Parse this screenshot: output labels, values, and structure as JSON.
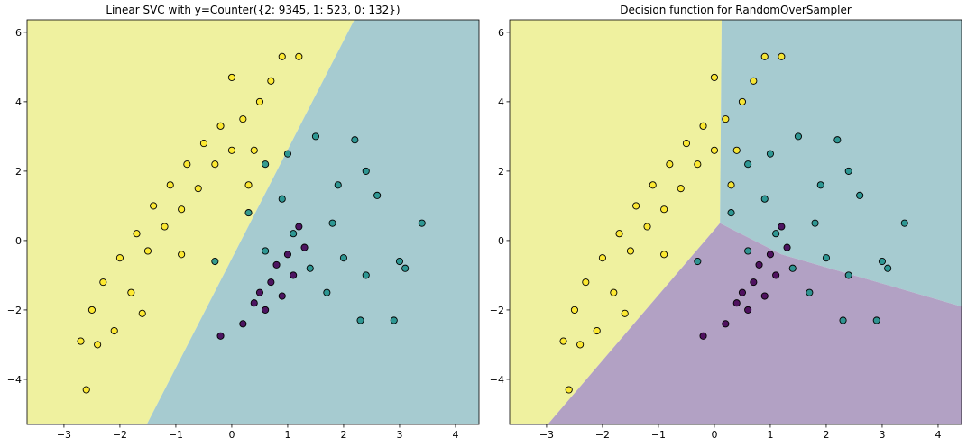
{
  "chart_data": [
    {
      "type": "scatter",
      "title": "Linear SVC with y=Counter({2: 9345, 1: 523, 0: 132})",
      "xlim": [
        -3.66,
        4.42
      ],
      "ylim": [
        -5.3,
        6.36
      ],
      "xticks": [
        {
          "value": -3,
          "label": "−3"
        },
        {
          "value": -2,
          "label": "−2"
        },
        {
          "value": -1,
          "label": "−1"
        },
        0,
        1,
        2,
        3,
        4
      ],
      "yticks": [
        {
          "value": -4,
          "label": "−4"
        },
        {
          "value": -2,
          "label": "−2"
        },
        0,
        2,
        4,
        6
      ],
      "regions": [
        {
          "color": "#eff19f",
          "points": [
            [
              -3.66,
              6.36
            ],
            [
              2.19,
              6.36
            ],
            [
              -1.52,
              -5.3
            ],
            [
              -3.66,
              -5.3
            ]
          ]
        },
        {
          "color": "#a6cbd0",
          "points": [
            [
              2.19,
              6.36
            ],
            [
              4.42,
              6.36
            ],
            [
              4.42,
              -5.3
            ],
            [
              -1.52,
              -5.3
            ]
          ]
        }
      ],
      "series": [
        {
          "color": "#fde725",
          "x": [
            -2.7,
            -2.6,
            -2.5,
            -2.3,
            -2.1,
            -2.0,
            -1.8,
            -1.7,
            -1.5,
            -1.4,
            -1.2,
            -1.1,
            -0.9,
            -0.8,
            -0.6,
            -0.5,
            -0.3,
            -0.2,
            0.0,
            0.0,
            0.2,
            0.3,
            0.5,
            0.7,
            0.9,
            1.2,
            -1.6,
            -0.9,
            0.4,
            -2.4
          ],
          "y": [
            -2.9,
            -4.3,
            -2.0,
            -1.2,
            -2.6,
            -0.5,
            -1.5,
            0.2,
            -0.3,
            1.0,
            0.4,
            1.6,
            0.9,
            2.2,
            1.5,
            2.8,
            2.2,
            3.3,
            2.6,
            4.7,
            3.5,
            1.6,
            4.0,
            4.6,
            5.3,
            5.3,
            -2.1,
            -0.4,
            2.6,
            -3.0
          ]
        },
        {
          "color": "#21918c",
          "x": [
            0.6,
            1.0,
            1.5,
            2.2,
            2.4,
            2.6,
            3.4,
            3.0,
            3.1,
            2.4,
            2.9,
            2.3,
            1.7,
            1.4,
            0.3,
            0.9,
            1.8,
            -0.3,
            0.6,
            1.9,
            1.1,
            2.0
          ],
          "y": [
            2.2,
            2.5,
            3.0,
            2.9,
            2.0,
            1.3,
            0.5,
            -0.6,
            -0.8,
            -1.0,
            -2.3,
            -2.3,
            -1.5,
            -0.8,
            0.8,
            1.2,
            0.5,
            -0.6,
            -0.3,
            1.6,
            0.2,
            -0.5
          ]
        },
        {
          "color": "#440154",
          "x": [
            -0.2,
            0.2,
            0.4,
            0.5,
            0.7,
            0.8,
            1.0,
            1.1,
            1.3,
            0.9,
            0.6,
            1.2
          ],
          "y": [
            -2.75,
            -2.4,
            -1.8,
            -1.5,
            -1.2,
            -0.7,
            -0.4,
            -1.0,
            -0.2,
            -1.6,
            -2.0,
            0.4
          ]
        }
      ]
    },
    {
      "type": "scatter",
      "title": "Decision function for RandomOverSampler",
      "xlim": [
        -3.66,
        4.42
      ],
      "ylim": [
        -5.3,
        6.36
      ],
      "xticks": [
        {
          "value": -3,
          "label": "−3"
        },
        {
          "value": -2,
          "label": "−2"
        },
        {
          "value": -1,
          "label": "−1"
        },
        0,
        1,
        2,
        3,
        4
      ],
      "yticks": [
        {
          "value": -4,
          "label": "−4"
        },
        {
          "value": -2,
          "label": "−2"
        },
        0,
        2,
        4,
        6
      ],
      "regions": [
        {
          "color": "#eff19f",
          "points": [
            [
              -3.66,
              6.36
            ],
            [
              0.13,
              6.36
            ],
            [
              0.1,
              0.5
            ],
            [
              -2.98,
              -5.3
            ],
            [
              -3.66,
              -5.3
            ]
          ]
        },
        {
          "color": "#a6cbd0",
          "points": [
            [
              0.13,
              6.36
            ],
            [
              4.42,
              6.36
            ],
            [
              4.42,
              -1.9
            ],
            [
              1.2,
              -0.4
            ],
            [
              0.1,
              0.5
            ]
          ]
        },
        {
          "color": "#b2a1c4",
          "points": [
            [
              0.1,
              0.5
            ],
            [
              1.2,
              -0.4
            ],
            [
              4.42,
              -1.9
            ],
            [
              4.42,
              -5.3
            ],
            [
              -2.98,
              -5.3
            ]
          ]
        }
      ],
      "series": [
        {
          "color": "#fde725",
          "x": [
            -2.7,
            -2.6,
            -2.5,
            -2.3,
            -2.1,
            -2.0,
            -1.8,
            -1.7,
            -1.5,
            -1.4,
            -1.2,
            -1.1,
            -0.9,
            -0.8,
            -0.6,
            -0.5,
            -0.3,
            -0.2,
            0.0,
            0.0,
            0.2,
            0.3,
            0.5,
            0.7,
            0.9,
            1.2,
            -1.6,
            -0.9,
            0.4,
            -2.4
          ],
          "y": [
            -2.9,
            -4.3,
            -2.0,
            -1.2,
            -2.6,
            -0.5,
            -1.5,
            0.2,
            -0.3,
            1.0,
            0.4,
            1.6,
            0.9,
            2.2,
            1.5,
            2.8,
            2.2,
            3.3,
            2.6,
            4.7,
            3.5,
            1.6,
            4.0,
            4.6,
            5.3,
            5.3,
            -2.1,
            -0.4,
            2.6,
            -3.0
          ]
        },
        {
          "color": "#21918c",
          "x": [
            0.6,
            1.0,
            1.5,
            2.2,
            2.4,
            2.6,
            3.4,
            3.0,
            3.1,
            2.4,
            2.9,
            2.3,
            1.7,
            1.4,
            0.3,
            0.9,
            1.8,
            -0.3,
            0.6,
            1.9,
            1.1,
            2.0
          ],
          "y": [
            2.2,
            2.5,
            3.0,
            2.9,
            2.0,
            1.3,
            0.5,
            -0.6,
            -0.8,
            -1.0,
            -2.3,
            -2.3,
            -1.5,
            -0.8,
            0.8,
            1.2,
            0.5,
            -0.6,
            -0.3,
            1.6,
            0.2,
            -0.5
          ]
        },
        {
          "color": "#440154",
          "x": [
            -0.2,
            0.2,
            0.4,
            0.5,
            0.7,
            0.8,
            1.0,
            1.1,
            1.3,
            0.9,
            0.6,
            1.2
          ],
          "y": [
            -2.75,
            -2.4,
            -1.8,
            -1.5,
            -1.2,
            -0.7,
            -0.4,
            -1.0,
            -0.2,
            -1.6,
            -2.0,
            0.4
          ]
        }
      ]
    }
  ]
}
